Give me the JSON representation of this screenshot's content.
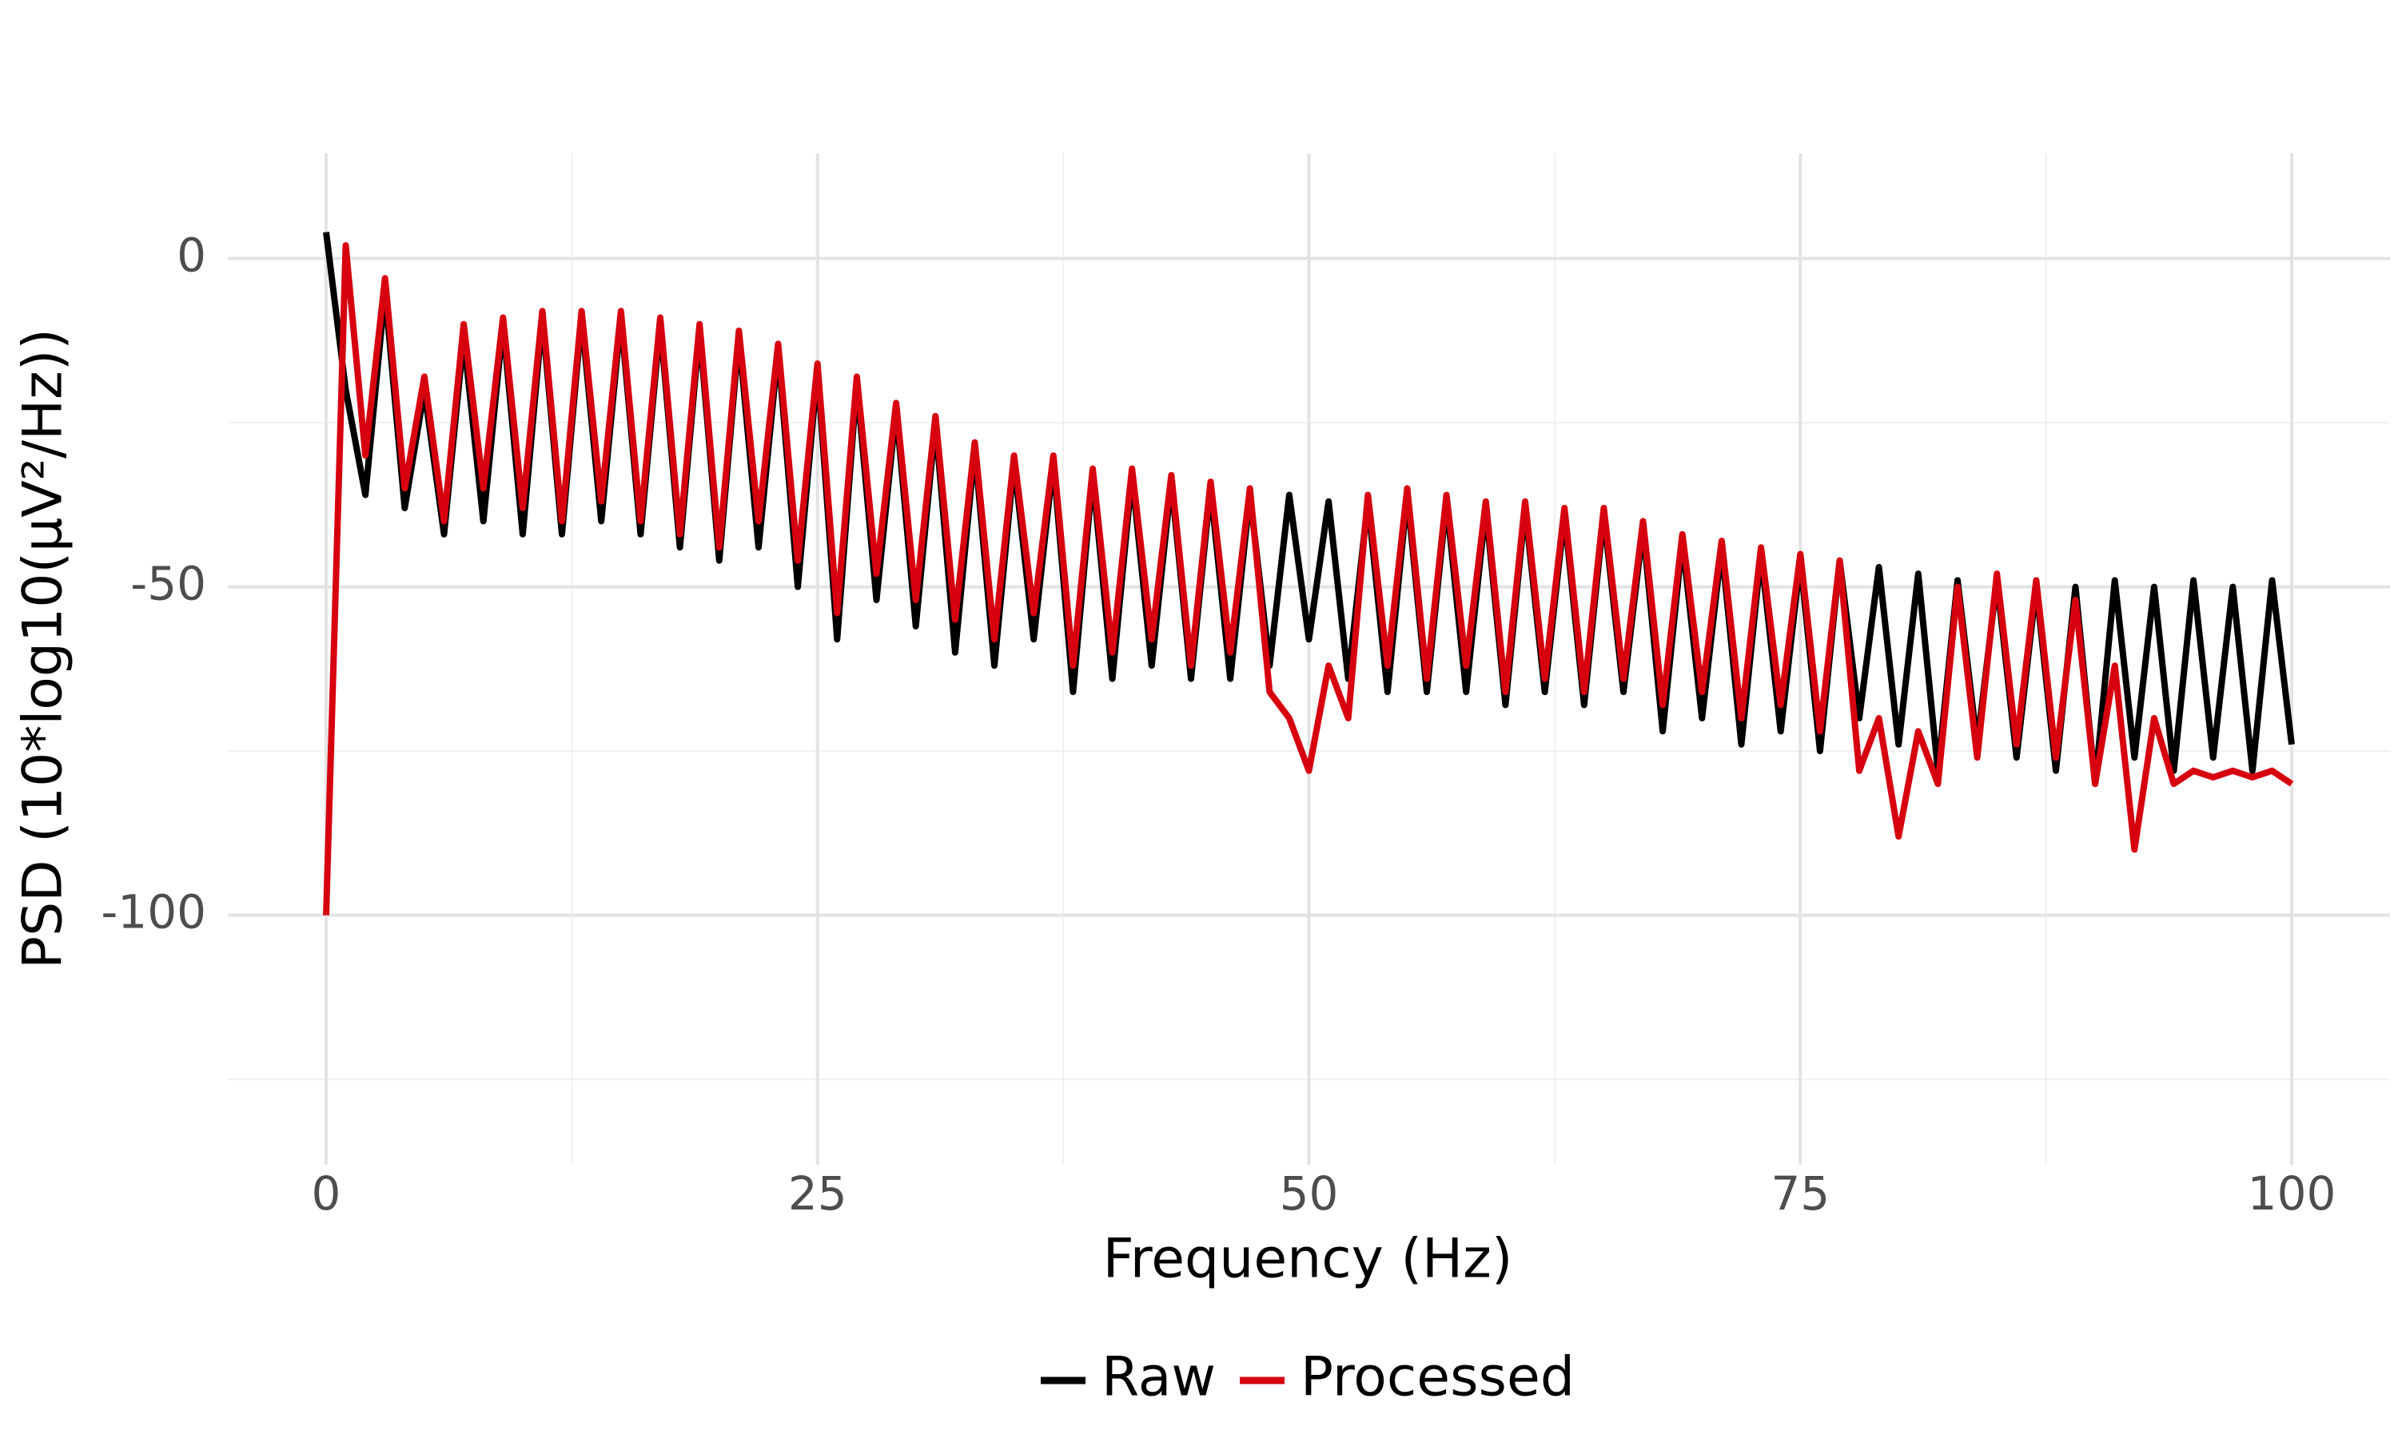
{
  "chart_data": {
    "type": "line",
    "x_label": "Frequency (Hz)",
    "y_label": "PSD (10*log10(µV²/Hz))",
    "x": [
      0,
      1,
      2,
      3,
      4,
      5,
      6,
      7,
      8,
      9,
      10,
      11,
      12,
      13,
      14,
      15,
      16,
      17,
      18,
      19,
      20,
      21,
      22,
      23,
      24,
      25,
      26,
      27,
      28,
      29,
      30,
      31,
      32,
      33,
      34,
      35,
      36,
      37,
      38,
      39,
      40,
      41,
      42,
      43,
      44,
      45,
      46,
      47,
      48,
      49,
      50,
      51,
      52,
      53,
      54,
      55,
      56,
      57,
      58,
      59,
      60,
      61,
      62,
      63,
      64,
      65,
      66,
      67,
      68,
      69,
      70,
      71,
      72,
      73,
      74,
      75,
      76,
      77,
      78,
      79,
      80,
      81,
      82,
      83,
      84,
      85,
      86,
      87,
      88,
      89,
      90,
      91,
      92,
      93,
      94,
      95,
      96,
      97,
      98,
      99,
      100
    ],
    "series": [
      {
        "name": "Raw",
        "color": "#000000",
        "values": [
          4,
          -20,
          -36,
          -5,
          -38,
          -20,
          -42,
          -12,
          -40,
          -10,
          -42,
          -9,
          -42,
          -9,
          -40,
          -9,
          -42,
          -10,
          -44,
          -11,
          -46,
          -12,
          -44,
          -14,
          -50,
          -17,
          -58,
          -19,
          -52,
          -23,
          -56,
          -25,
          -60,
          -29,
          -62,
          -31,
          -58,
          -31,
          -66,
          -33,
          -64,
          -33,
          -62,
          -34,
          -64,
          -35,
          -64,
          -36,
          -62,
          -36,
          -58,
          -37,
          -64,
          -37,
          -66,
          -36,
          -66,
          -37,
          -66,
          -38,
          -68,
          -38,
          -66,
          -39,
          -68,
          -39,
          -66,
          -41,
          -72,
          -43,
          -70,
          -44,
          -74,
          -45,
          -72,
          -46,
          -75,
          -46,
          -70,
          -47,
          -74,
          -48,
          -78,
          -49,
          -74,
          -49,
          -76,
          -50,
          -78,
          -50,
          -80,
          -49,
          -76,
          -50,
          -78,
          -49,
          -76,
          -50,
          -78,
          -49,
          -74
        ]
      },
      {
        "name": "Processed",
        "color": "#d7000f",
        "values": [
          -100,
          2,
          -30,
          -3,
          -35,
          -18,
          -40,
          -10,
          -35,
          -9,
          -38,
          -8,
          -40,
          -8,
          -37,
          -8,
          -40,
          -9,
          -42,
          -10,
          -44,
          -11,
          -40,
          -13,
          -46,
          -16,
          -54,
          -18,
          -48,
          -22,
          -52,
          -24,
          -55,
          -28,
          -58,
          -30,
          -54,
          -30,
          -62,
          -32,
          -60,
          -32,
          -58,
          -33,
          -62,
          -34,
          -60,
          -35,
          -66,
          -70,
          -78,
          -62,
          -70,
          -36,
          -62,
          -35,
          -64,
          -36,
          -62,
          -37,
          -66,
          -37,
          -64,
          -38,
          -66,
          -38,
          -64,
          -40,
          -68,
          -42,
          -66,
          -43,
          -70,
          -44,
          -68,
          -45,
          -72,
          -46,
          -78,
          -70,
          -88,
          -72,
          -80,
          -50,
          -76,
          -48,
          -74,
          -49,
          -76,
          -52,
          -80,
          -62,
          -90,
          -70,
          -80,
          -78,
          -79,
          -78,
          -79,
          -78,
          -80
        ]
      }
    ],
    "xlim": [
      -5,
      105
    ],
    "ylim": [
      -138,
      16
    ],
    "xticks": [
      0,
      25,
      50,
      75,
      100
    ],
    "yticks": [
      -100,
      -50,
      0
    ],
    "x_minor_grid": [
      12.5,
      37.5,
      62.5,
      87.5
    ],
    "y_minor_grid": [
      -125,
      -75,
      -25
    ],
    "grid": true,
    "legend": "bottom"
  }
}
